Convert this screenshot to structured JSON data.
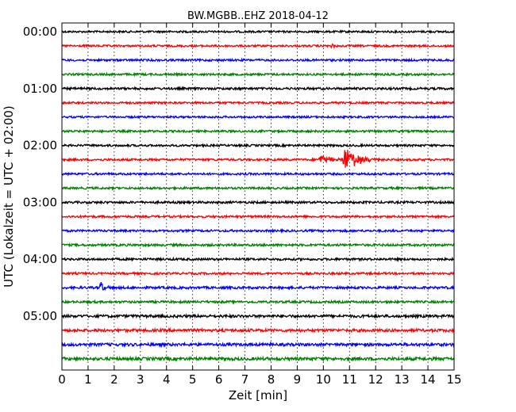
{
  "chart_data": {
    "type": "line",
    "title": "BW.MGBB..EHZ 2018-04-12",
    "xlabel": "Zeit  [min]",
    "ylabel": "UTC (Lokalzeit = UTC + 02:00)",
    "xlim": [
      0,
      15
    ],
    "x_ticks": [
      "0",
      "1",
      "2",
      "3",
      "4",
      "5",
      "6",
      "7",
      "8",
      "9",
      "10",
      "11",
      "12",
      "13",
      "14",
      "15"
    ],
    "y_ticks": [
      {
        "label": "00:00",
        "trace": 0
      },
      {
        "label": "01:00",
        "trace": 4
      },
      {
        "label": "02:00",
        "trace": 8
      },
      {
        "label": "03:00",
        "trace": 12
      },
      {
        "label": "04:00",
        "trace": 16
      },
      {
        "label": "05:00",
        "trace": 20
      }
    ],
    "trace_interval_min": 15,
    "grid": "vertical-dotted",
    "colors": [
      "#000000",
      "#ff0000",
      "#0000ff",
      "#008000"
    ],
    "traces": [
      {
        "start": "00:00",
        "color": "#000000",
        "noise": 1.2,
        "events": []
      },
      {
        "start": "00:15",
        "color": "#ff0000",
        "noise": 1.2,
        "events": [
          {
            "t": 10.3,
            "amp": 4,
            "dur": 0.4
          }
        ]
      },
      {
        "start": "00:30",
        "color": "#0000ff",
        "noise": 1.3,
        "events": []
      },
      {
        "start": "00:45",
        "color": "#008000",
        "noise": 1.3,
        "events": []
      },
      {
        "start": "01:00",
        "color": "#000000",
        "noise": 1.4,
        "events": []
      },
      {
        "start": "01:15",
        "color": "#ff0000",
        "noise": 1.2,
        "events": []
      },
      {
        "start": "01:30",
        "color": "#0000ff",
        "noise": 1.2,
        "events": []
      },
      {
        "start": "01:45",
        "color": "#008000",
        "noise": 1.3,
        "events": []
      },
      {
        "start": "02:00",
        "color": "#000000",
        "noise": 1.3,
        "events": []
      },
      {
        "start": "02:15",
        "color": "#ff0000",
        "noise": 1.3,
        "events": [
          {
            "t": 9.9,
            "amp": 8,
            "dur": 0.9
          },
          {
            "t": 10.8,
            "amp": 17,
            "dur": 1.6
          }
        ]
      },
      {
        "start": "02:30",
        "color": "#0000ff",
        "noise": 1.3,
        "events": []
      },
      {
        "start": "02:45",
        "color": "#008000",
        "noise": 1.3,
        "events": []
      },
      {
        "start": "03:00",
        "color": "#000000",
        "noise": 1.4,
        "events": []
      },
      {
        "start": "03:15",
        "color": "#ff0000",
        "noise": 1.3,
        "events": []
      },
      {
        "start": "03:30",
        "color": "#0000ff",
        "noise": 1.3,
        "events": []
      },
      {
        "start": "03:45",
        "color": "#008000",
        "noise": 1.4,
        "events": []
      },
      {
        "start": "04:00",
        "color": "#000000",
        "noise": 1.4,
        "events": []
      },
      {
        "start": "04:15",
        "color": "#ff0000",
        "noise": 1.3,
        "events": []
      },
      {
        "start": "04:30",
        "color": "#0000ff",
        "noise": 1.5,
        "events": [
          {
            "t": 1.5,
            "amp": 7,
            "dur": 0.4
          }
        ]
      },
      {
        "start": "04:45",
        "color": "#008000",
        "noise": 1.4,
        "events": []
      },
      {
        "start": "05:00",
        "color": "#000000",
        "noise": 1.7,
        "events": []
      },
      {
        "start": "05:15",
        "color": "#ff0000",
        "noise": 1.8,
        "events": []
      },
      {
        "start": "05:30",
        "color": "#0000ff",
        "noise": 1.8,
        "events": []
      },
      {
        "start": "05:45",
        "color": "#008000",
        "noise": 1.9,
        "events": []
      }
    ]
  }
}
